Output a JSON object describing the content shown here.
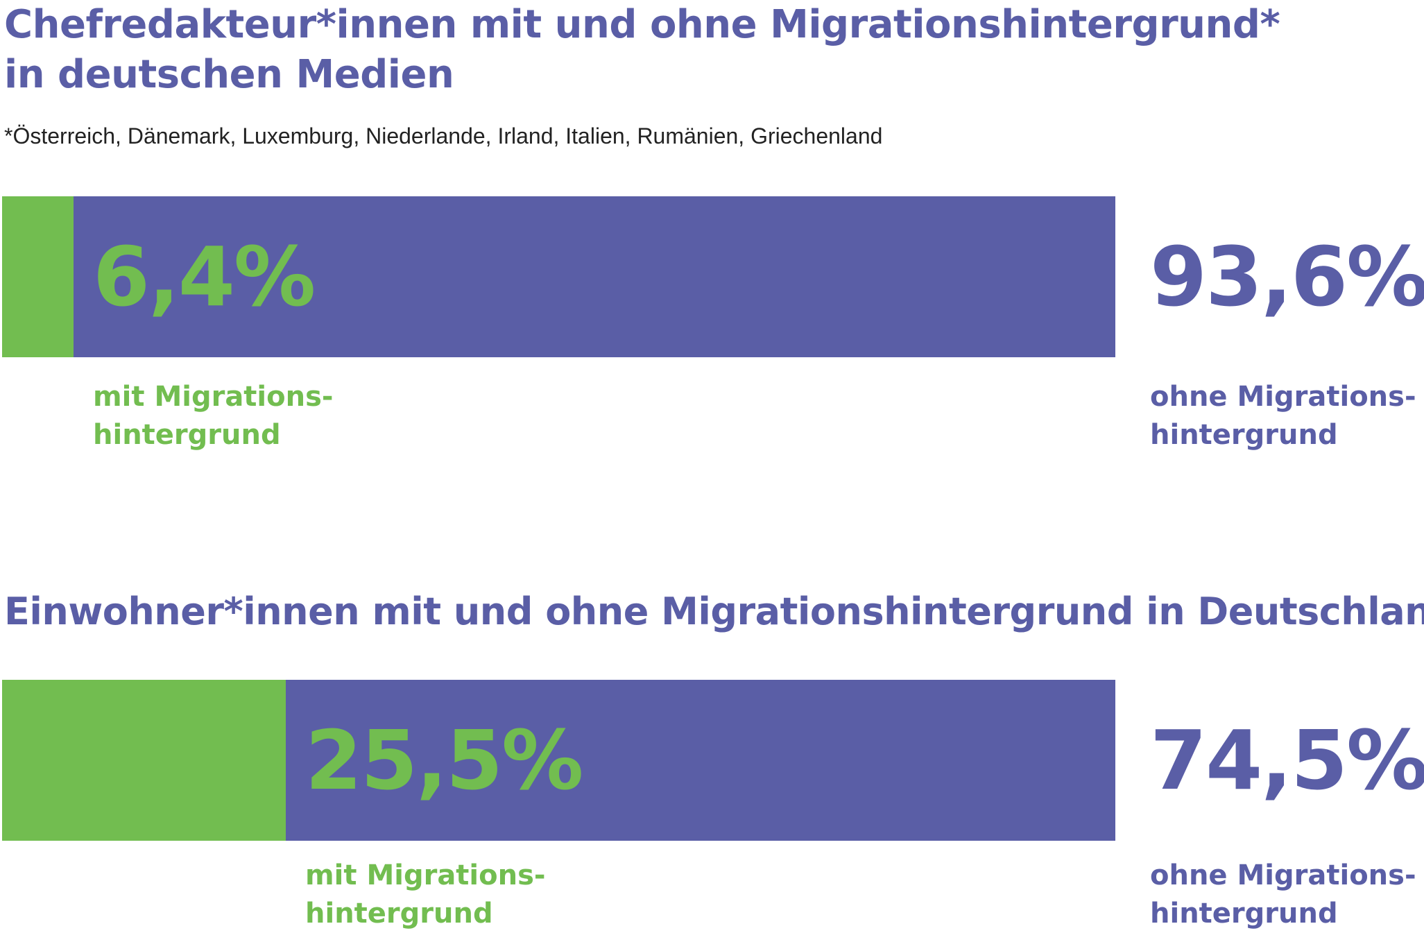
{
  "colors": {
    "with_migration": "#72bd50",
    "without_migration": "#5a5ea6",
    "title": "#5a5ea6",
    "footnote": "#222222"
  },
  "chart_data": [
    {
      "type": "bar",
      "orientation": "horizontal-stacked",
      "title_line1": "Chefredakteur*innen mit und ohne Migrationshintergrund*",
      "title_line2": "in deutschen Medien",
      "footnote": "*Österreich, Dänemark, Luxemburg, Niederlande, Irland, Italien, Rumänien, Griechenland",
      "series": [
        {
          "value": 6.4,
          "value_label": "6,4%",
          "label_line1": "mit Migrations-",
          "label_line2": "hintergrund"
        },
        {
          "value": 93.6,
          "value_label": "93,6%",
          "label_line1": "ohne Migrations-",
          "label_line2": "hintergrund"
        }
      ],
      "xlim": [
        0,
        100
      ]
    },
    {
      "type": "bar",
      "orientation": "horizontal-stacked",
      "title_line1": "Einwohner*innen mit und ohne Migrationshintergrund in Deutschland",
      "series": [
        {
          "value": 25.5,
          "value_label": "25,5%",
          "label_line1": "mit Migrations-",
          "label_line2": "hintergrund"
        },
        {
          "value": 74.5,
          "value_label": "74,5%",
          "label_line1": "ohne Migrations-",
          "label_line2": "hintergrund"
        }
      ],
      "xlim": [
        0,
        100
      ]
    }
  ]
}
